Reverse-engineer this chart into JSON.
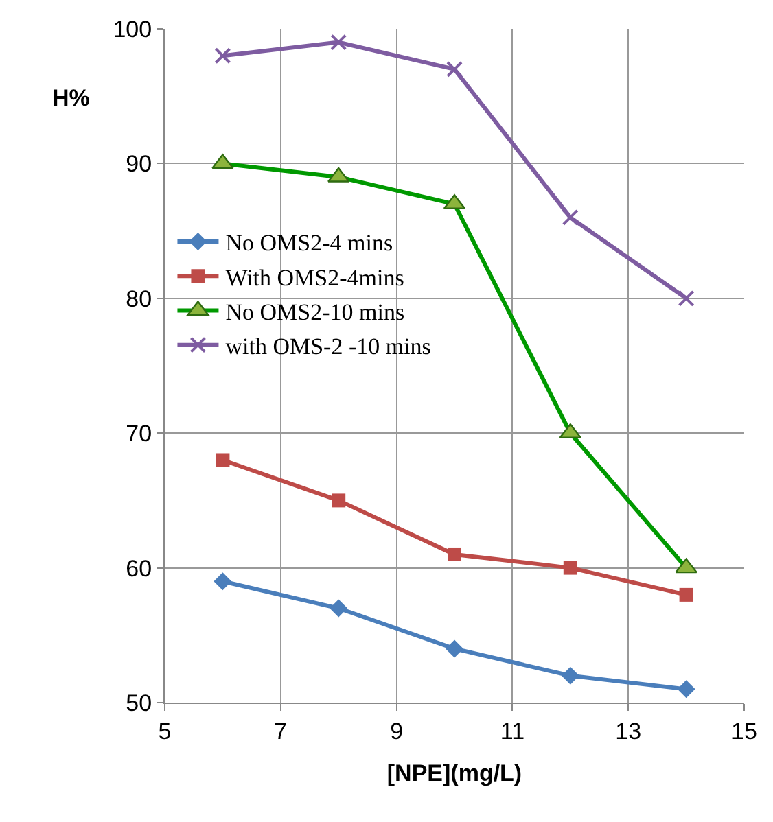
{
  "chart_data": {
    "type": "line",
    "xlabel": "[NPE](mg/L)",
    "ylabel": "H%",
    "x": [
      6,
      8,
      10,
      12,
      14
    ],
    "series": [
      {
        "name": "No OMS2-4 mins",
        "color": "#4a7ebb",
        "marker": "diamond",
        "values": [
          59,
          57,
          54,
          52,
          51
        ]
      },
      {
        "name": "With OMS2-4mins",
        "color": "#be4b48",
        "marker": "square",
        "values": [
          68,
          65,
          61,
          60,
          58
        ]
      },
      {
        "name": "No OMS2-10 mins",
        "color": "#009900",
        "marker": "triangle",
        "values": [
          90,
          89,
          87,
          70,
          60
        ]
      },
      {
        "name": "with OMS-2 -10 mins",
        "color": "#7e5ca1",
        "marker": "cross",
        "values": [
          98,
          99,
          97,
          86,
          80
        ]
      }
    ],
    "xlim": [
      5,
      15
    ],
    "xticks": [
      5,
      7,
      9,
      11,
      13,
      15
    ],
    "ylim": [
      50,
      100
    ],
    "yticks": [
      50,
      60,
      70,
      80,
      90,
      100
    ],
    "grid": true,
    "legend": "left"
  }
}
